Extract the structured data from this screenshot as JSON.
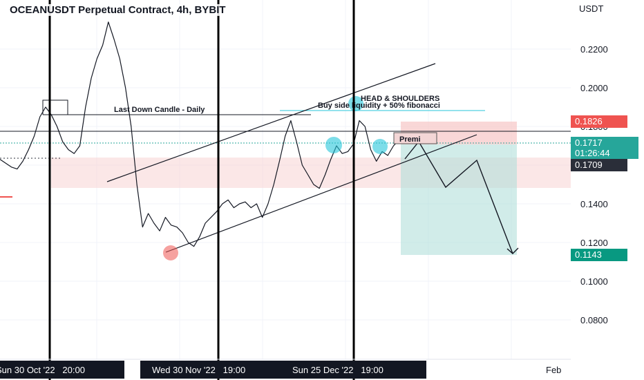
{
  "header": {
    "title": "OCEANUSDT Perpetual Contract, 4h, BYBIT",
    "currency": "USDT"
  },
  "price_axis": {
    "ticks": [
      "0.2200",
      "0.2000",
      "0.1800",
      "0.1600",
      "0.1400",
      "0.1200",
      "0.1000",
      "0.0800"
    ]
  },
  "time_axis": {
    "labels": [
      "Sun 30 Oct '22   20:00",
      "Wed 30 Nov '22   19:00",
      "Sun 25 Dec '22   19:00",
      "Feb"
    ]
  },
  "price_tags": {
    "stop": {
      "value": "0.1826",
      "color": "#ef5350"
    },
    "last": {
      "value": "0.1717",
      "countdown": "01:26:44",
      "color": "#26a69a"
    },
    "marker": {
      "value": "0.1709",
      "color": "#2a2e39"
    },
    "target": {
      "value": "0.1143",
      "color": "#089981"
    }
  },
  "annotations": {
    "last_down_candle": "Last Down Candle - Daily",
    "pattern": "HEAD & SHOULDERS",
    "liquidity": "Buy side liquidity + 50% fibonacci",
    "entry": "Premi"
  },
  "chart_data": {
    "type": "line",
    "title": "OCEANUSDT Perpetual Contract, 4h, BYBIT",
    "ylabel": "USDT",
    "ylim": [
      0.072,
      0.236
    ],
    "x_labels": [
      "Sun 30 Oct '22 20:00",
      "Wed 30 Nov '22 19:00",
      "Sun 25 Dec '22 19:00",
      "Feb"
    ],
    "series": [
      {
        "values": [
          0.163,
          0.161,
          0.159,
          0.158,
          0.162,
          0.168,
          0.175,
          0.185,
          0.19,
          0.186,
          0.18,
          0.172,
          0.168,
          0.166,
          0.17,
          0.19,
          0.205,
          0.215,
          0.222,
          0.234,
          0.225,
          0.215,
          0.2,
          0.18,
          0.15,
          0.128,
          0.135,
          0.13,
          0.126,
          0.133,
          0.129,
          0.128,
          0.125,
          0.12,
          0.118,
          0.123,
          0.13,
          0.133,
          0.136,
          0.14,
          0.142,
          0.138,
          0.14,
          0.141,
          0.138,
          0.14,
          0.133,
          0.14,
          0.15,
          0.162,
          0.175,
          0.183,
          0.172,
          0.16,
          0.155,
          0.15,
          0.148,
          0.155,
          0.163,
          0.17,
          0.166,
          0.167,
          0.171,
          0.183,
          0.18,
          0.168,
          0.162,
          0.167,
          0.165,
          0.17,
          0.173,
          0.1717
        ]
      }
    ],
    "levels": {
      "stop": 0.1826,
      "entry": 0.1717,
      "target": 0.1143
    },
    "grid": true
  }
}
